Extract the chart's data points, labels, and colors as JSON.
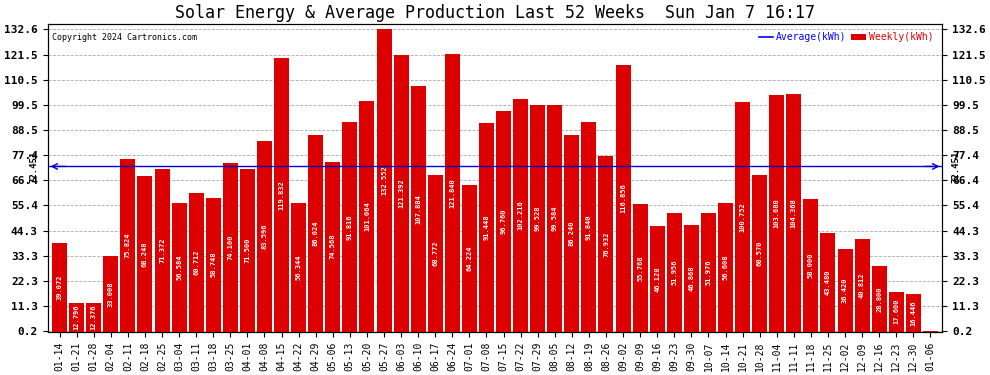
{
  "title": "Solar Energy & Average Production Last 52 Weeks  Sun Jan 7 16:17",
  "copyright": "Copyright 2024 Cartronics.com",
  "average_label": "Average(kWh)",
  "weekly_label": "Weekly(kWh)",
  "average_value": 72.451,
  "bar_color": "#dd0000",
  "average_line_color": "#0000cc",
  "average_label_color": "#0000ff",
  "weekly_label_color": "#dd0000",
  "yticks": [
    0.2,
    11.3,
    22.3,
    33.3,
    44.3,
    55.4,
    66.4,
    77.4,
    88.5,
    99.5,
    110.5,
    121.5,
    132.6
  ],
  "ylim_max": 135,
  "categories": [
    "01-14",
    "01-21",
    "01-28",
    "02-04",
    "02-11",
    "02-18",
    "02-25",
    "03-04",
    "03-11",
    "03-18",
    "03-25",
    "04-01",
    "04-08",
    "04-15",
    "04-22",
    "04-29",
    "05-06",
    "05-13",
    "05-20",
    "05-27",
    "06-03",
    "06-10",
    "06-17",
    "06-24",
    "07-01",
    "07-08",
    "07-15",
    "07-22",
    "07-29",
    "08-05",
    "08-12",
    "08-19",
    "08-26",
    "09-02",
    "09-09",
    "09-16",
    "09-23",
    "09-30",
    "10-07",
    "10-14",
    "10-21",
    "10-28",
    "11-04",
    "11-11",
    "11-18",
    "11-25",
    "12-02",
    "12-09",
    "12-16",
    "12-23",
    "12-30",
    "01-06"
  ],
  "values": [
    39.072,
    12.796,
    12.376,
    33.008,
    75.824,
    68.248,
    71.372,
    56.584,
    60.712,
    58.748,
    74.1,
    71.5,
    83.596,
    119.832,
    56.344,
    86.024,
    74.568,
    91.816,
    101.064,
    132.552,
    121.392,
    107.884,
    68.772,
    121.84,
    64.224,
    91.448,
    96.76,
    102.216,
    99.528,
    99.584,
    86.24,
    91.84,
    76.932,
    116.856,
    55.768,
    46.128,
    51.956,
    46.868,
    51.976,
    56.608,
    100.752,
    68.57,
    103.68,
    104.368,
    58.0,
    43.48,
    36.42,
    40.812,
    28.8,
    17.6,
    16.446,
    0.2
  ],
  "value_annotations": [
    "39.072",
    "12.796",
    "12.376",
    "33.008",
    "75.824",
    "68.248",
    "71.372",
    "56.584",
    "60.712",
    "58.748",
    "74.100",
    "71.500",
    "83.596",
    "119.832",
    "56.344",
    "86.024",
    "74.568",
    "91.816",
    "101.064",
    "132.552",
    "121.392",
    "107.884",
    "68.772",
    "121.840",
    "64.224",
    "91.448",
    "96.760",
    "102.216",
    "99.528",
    "99.584",
    "86.240",
    "91.840",
    "76.932",
    "116.856",
    "55.768",
    "46.128",
    "51.956",
    "46.868",
    "51.976",
    "56.608",
    "100.752",
    "68.570",
    "103.680",
    "104.368",
    "58.000",
    "43.480",
    "36.420",
    "40.812",
    "28.800",
    "17.600",
    "16.446",
    "0.2"
  ],
  "avg_annotation": "72.451",
  "background_color": "#ffffff",
  "plot_bg_color": "#ffffff",
  "grid_color": "#aaaaaa",
  "title_fontsize": 12,
  "tick_fontsize": 7,
  "ytick_fontsize": 8,
  "annot_fontsize": 5.0,
  "avg_fontsize": 6.5
}
